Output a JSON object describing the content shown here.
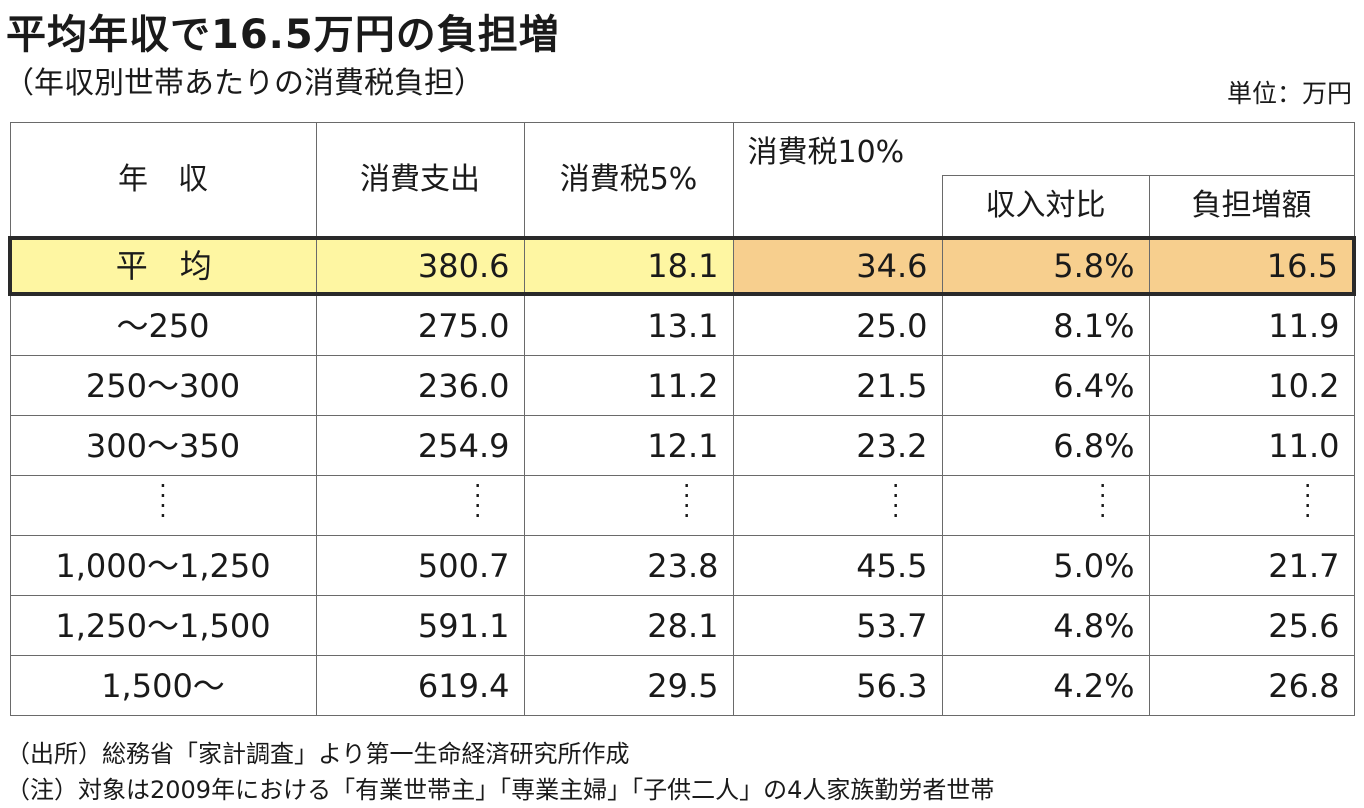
{
  "title": "平均年収で16.5万円の負担増",
  "subtitle": "（年収別世帯あたりの消費税負担）",
  "unit": "単位：万円",
  "chart_data": {
    "type": "table",
    "headers": {
      "income": "年　収",
      "consumption": "消費支出",
      "tax5": "消費税5%",
      "tax10": "消費税10%",
      "ratio": "収入対比",
      "increase": "負担増額"
    },
    "average": {
      "label": "平　均",
      "consumption": "380.6",
      "tax5": "18.1",
      "tax10": "34.6",
      "ratio": "5.8%",
      "increase": "16.5"
    },
    "rows": [
      {
        "label": "～250",
        "consumption": "275.0",
        "tax5": "13.1",
        "tax10": "25.0",
        "ratio": "8.1%",
        "increase": "11.9"
      },
      {
        "label": "250～300",
        "consumption": "236.0",
        "tax5": "11.2",
        "tax10": "21.5",
        "ratio": "6.4%",
        "increase": "10.2"
      },
      {
        "label": "300～350",
        "consumption": "254.9",
        "tax5": "12.1",
        "tax10": "23.2",
        "ratio": "6.8%",
        "increase": "11.0"
      }
    ],
    "rows_after": [
      {
        "label": "1,000～1,250",
        "consumption": "500.7",
        "tax5": "23.8",
        "tax10": "45.5",
        "ratio": "5.0%",
        "increase": "21.7"
      },
      {
        "label": "1,250～1,500",
        "consumption": "591.1",
        "tax5": "28.1",
        "tax10": "53.7",
        "ratio": "4.8%",
        "increase": "25.6"
      },
      {
        "label": "1,500～",
        "consumption": "619.4",
        "tax5": "29.5",
        "tax10": "56.3",
        "ratio": "4.2%",
        "increase": "26.8"
      }
    ]
  },
  "notes": {
    "source": "（出所）総務省「家計調査」より第一生命経済研究所作成",
    "note": "（注）対象は2009年における「有業世帯主」「専業主婦」「子供二人」の4人家族勤労者世帯"
  }
}
